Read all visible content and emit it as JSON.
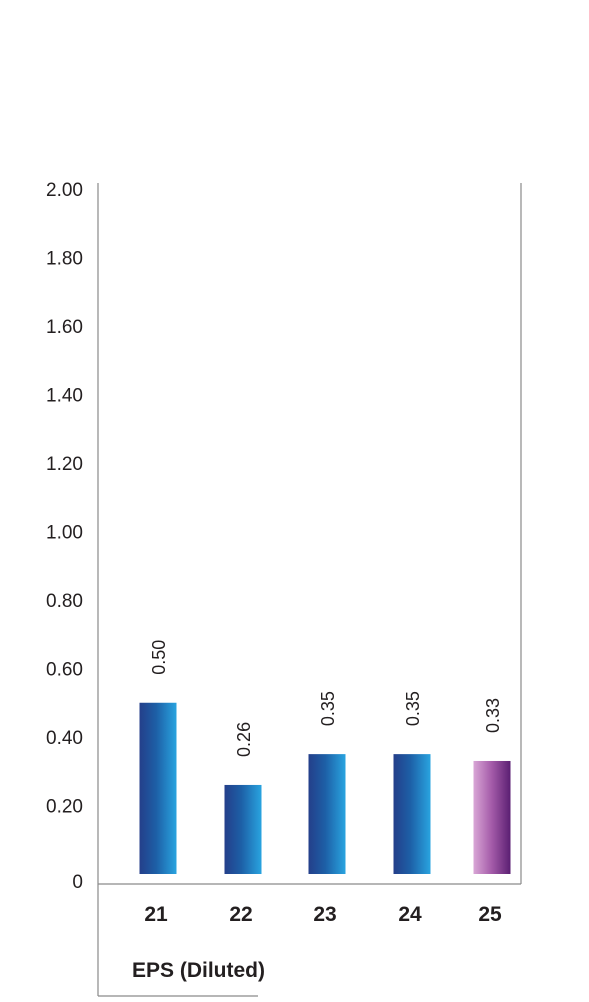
{
  "chart_data": {
    "type": "bar",
    "title": "EPS (Diluted)",
    "categories": [
      "21",
      "22",
      "23",
      "24",
      "25"
    ],
    "values": [
      0.5,
      0.26,
      0.35,
      0.35,
      0.33
    ],
    "value_labels": [
      "0.50",
      "0.26",
      "0.35",
      "0.35",
      "0.33"
    ],
    "yticks": [
      "0",
      "0.20",
      "0.40",
      "0.60",
      "0.80",
      "1.00",
      "1.20",
      "1.40",
      "1.60",
      "1.80",
      "2.00"
    ],
    "ylim": [
      0,
      2.0
    ],
    "grid": false,
    "highlight_index": 4,
    "colors": {
      "bar_dark": "#243f8a",
      "bar_light": "#29a4e0",
      "highlight_light": "#d9a6d6",
      "highlight_dark": "#5a1f72",
      "axis": "#8a8a8a",
      "text": "#231f20"
    }
  }
}
